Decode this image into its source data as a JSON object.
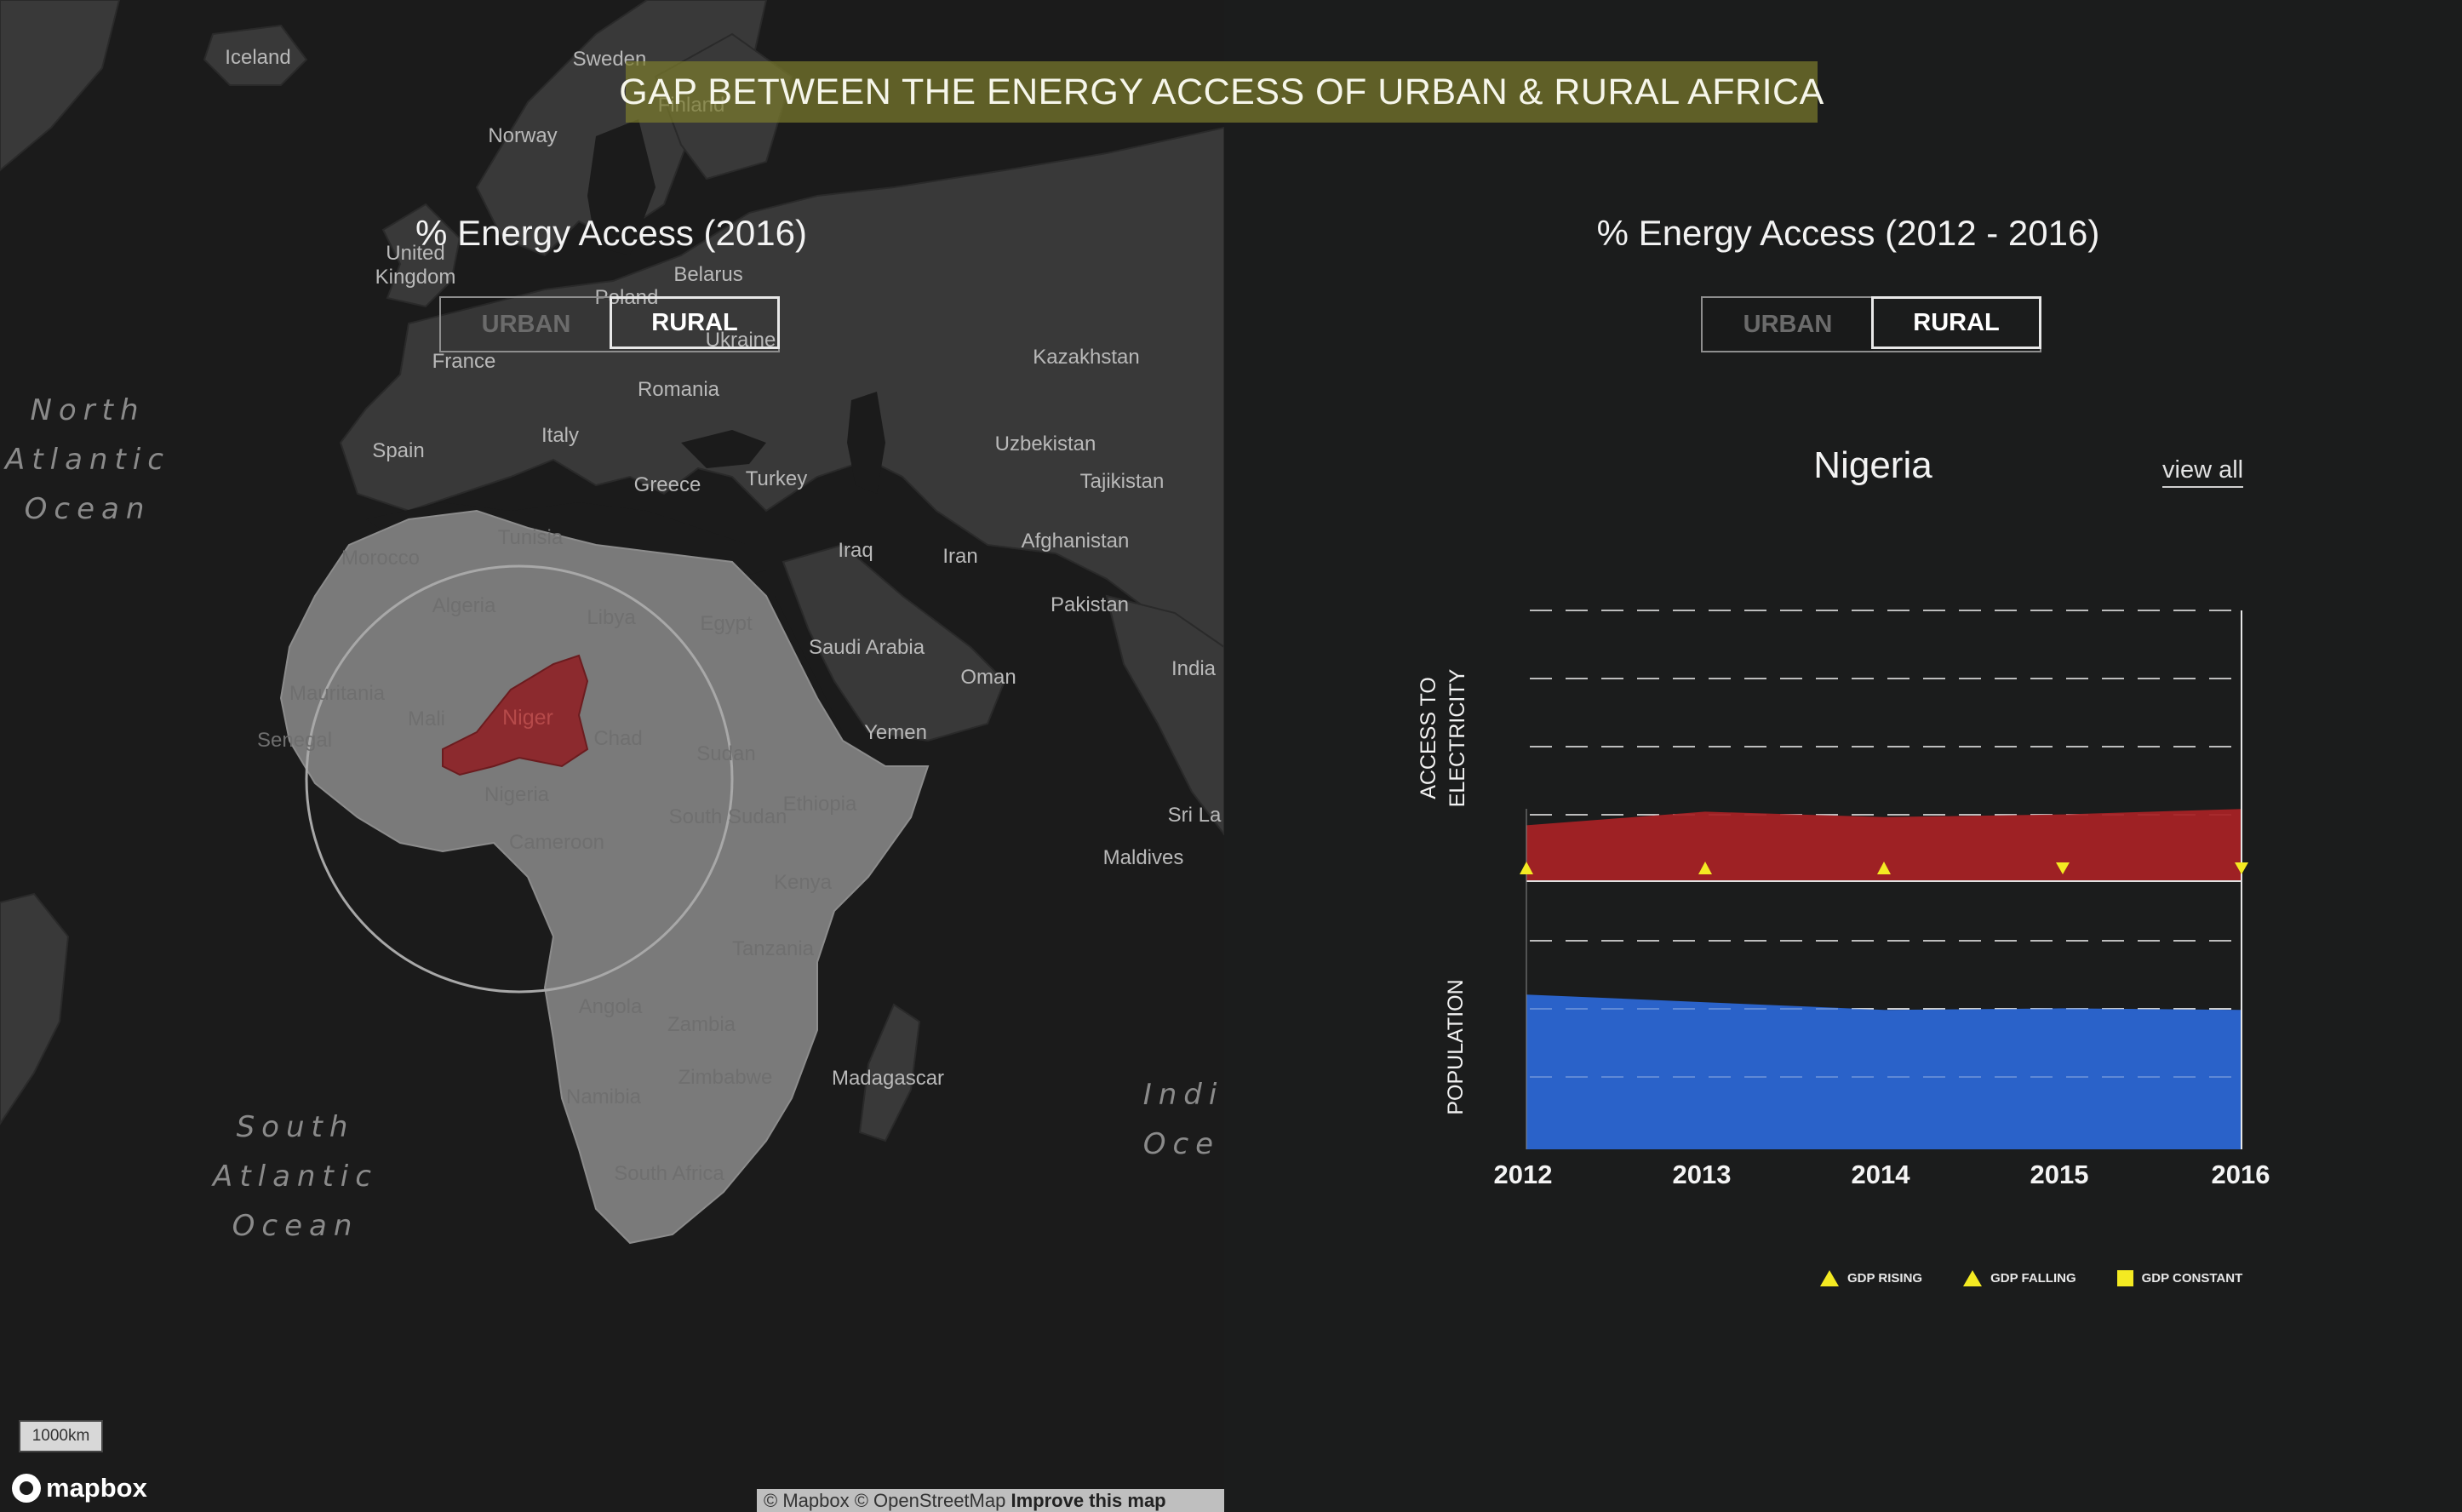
{
  "title": "GAP BETWEEN THE ENERGY ACCESS OF URBAN & RURAL AFRICA",
  "map_panel": {
    "heading": "% Energy Access (2016)",
    "toggle": {
      "urban": "URBAN",
      "rural": "RURAL",
      "selected": "RURAL"
    },
    "country_labels": {
      "iceland": "Iceland",
      "sweden": "Sweden",
      "finland": "Finland",
      "norway": "Norway",
      "united_kingdom": "United\nKingdom",
      "belarus": "Belarus",
      "poland": "Poland",
      "ukraine": "Ukraine",
      "france": "France",
      "kazakhstan": "Kazakhstan",
      "romania": "Romania",
      "spain": "Spain",
      "italy": "Italy",
      "uzbekistan": "Uzbekistan",
      "tajikistan": "Tajikistan",
      "greece": "Greece",
      "turkey": "Turkey",
      "morocco": "Morocco",
      "tunisia": "Tunisia",
      "afghanistan": "Afghanistan",
      "iraq": "Iraq",
      "iran": "Iran",
      "algeria": "Algeria",
      "libya": "Libya",
      "egypt": "Egypt",
      "pakistan": "Pakistan",
      "saudi_arabia": "Saudi Arabia",
      "mauritania": "Mauritania",
      "oman": "Oman",
      "india": "India",
      "mali": "Mali",
      "niger": "Niger",
      "senegal": "Senegal",
      "chad": "Chad",
      "yemen": "Yemen",
      "sudan": "Sudan",
      "nigeria": "Nigeria",
      "ethiopia": "Ethiopia",
      "south_sudan": "South Sudan",
      "sri_lanka": "Sri La",
      "cameroon": "Cameroon",
      "maldives": "Maldives",
      "kenya": "Kenya",
      "tanzania": "Tanzania",
      "angola": "Angola",
      "zambia": "Zambia",
      "zimbabwe": "Zimbabwe",
      "madagascar": "Madagascar",
      "namibia": "Namibia",
      "south_africa": "South Africa"
    },
    "ocean_labels": {
      "north_atlantic": "North\nAtlantic\nOcean",
      "south_atlantic": "South\nAtlantic\nOcean",
      "indian": "Indi\nOce"
    },
    "scale": "1000km",
    "logo": "mapbox",
    "attribution": {
      "text": "© Mapbox © OpenStreetMap",
      "link": "Improve this map"
    },
    "colors": {
      "africa": "#7a7a7a",
      "selected_country": "#8c2a2e",
      "land": "#3a3a3a",
      "water": "#1b1b1b"
    }
  },
  "chart_panel": {
    "heading": "% Energy Access  (2012 - 2016)",
    "toggle": {
      "urban": "URBAN",
      "rural": "RURAL",
      "selected": "RURAL"
    },
    "country": "Nigeria",
    "view_all": "view all",
    "y_labels": {
      "top": "ACCESS TO\nELECTRICITY",
      "bottom": "POPULATION"
    },
    "legend": [
      {
        "label": "GDP RISING",
        "symbol": "triangle-up"
      },
      {
        "label": "GDP FALLING",
        "symbol": "triangle-up"
      },
      {
        "label": "GDP CONSTANT",
        "symbol": "square"
      }
    ],
    "colors": {
      "access": "#a52225",
      "population": "#2a62c9",
      "gdp_marker": "#f4ea22"
    }
  },
  "chart_data": {
    "type": "area",
    "x": [
      "2012",
      "2013",
      "2014",
      "2015",
      "2016"
    ],
    "series": [
      {
        "name": "ACCESS TO ELECTRICITY",
        "values": [
          41,
          51,
          47,
          49,
          53
        ]
      },
      {
        "name": "POPULATION",
        "values": [
          101,
          96,
          91,
          92,
          91
        ]
      }
    ],
    "gdp_markers": [
      "rising",
      "rising",
      "rising",
      "falling",
      "falling"
    ]
  }
}
